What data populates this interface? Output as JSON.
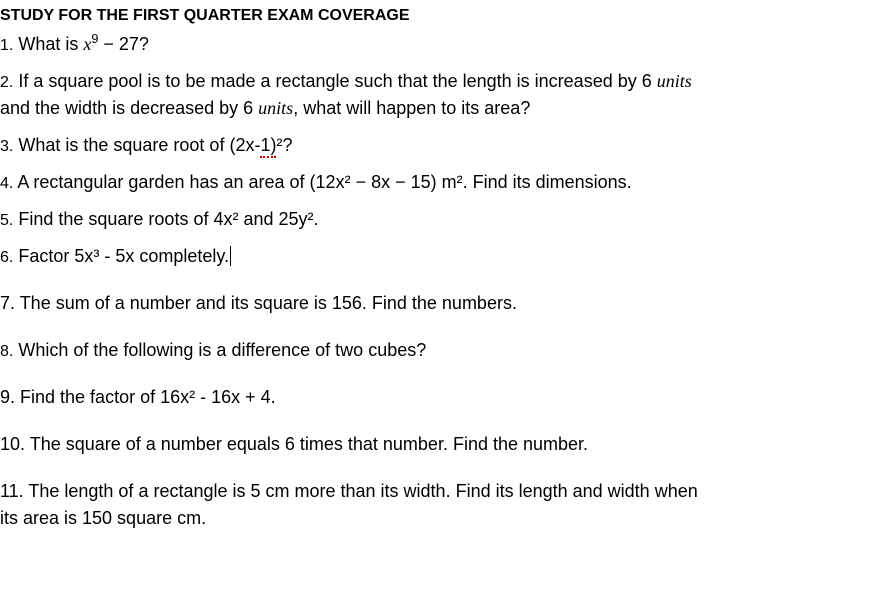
{
  "title": "STUDY FOR THE FIRST QUARTER EXAM COVERAGE",
  "questions": {
    "q1": {
      "num": "1.",
      "prefix": " What is ",
      "var": "x",
      "exp": "9",
      "mid": " − 27?"
    },
    "q2": {
      "num": "2.",
      "part1": " If a square pool is to be made a rectangle such that the length is increased by 6 ",
      "units1": "units",
      "part2": "and the width is decreased by 6 ",
      "units2": "units",
      "part3": ", what will happen to its area?"
    },
    "q3": {
      "num": "3.",
      "part1": " What is the square root of (2x-",
      "underlined": "1)",
      "part2": "²?"
    },
    "q4": {
      "num": "4.",
      "text": " A rectangular garden has an area of (12x² − 8x − 15) m². Find its dimensions."
    },
    "q5": {
      "num": "5.",
      "text": " Find the square roots of 4x² and 25y²."
    },
    "q6": {
      "num": "6.",
      "text": " Factor 5x³ - 5x completely."
    },
    "q7": {
      "num": "7.",
      "text": " The sum of a number and its square is 156. Find the numbers."
    },
    "q8": {
      "num": "8.",
      "text": " Which of the following is a difference of two cubes?"
    },
    "q9": {
      "num": "9.",
      "text": " Find the factor of 16x² - 16x + 4."
    },
    "q10": {
      "num": "10.",
      "text": " The square of a number equals 6 times that number. Find the number."
    },
    "q11": {
      "num": "11.",
      "part1": " The length of a rectangle is 5 cm more than its width. Find its length and width when",
      "part2": "its area is 150 square cm."
    }
  },
  "colors": {
    "text": "#000000",
    "background": "#ffffff",
    "underline": "#cc0000"
  },
  "fonts": {
    "body_size": 18,
    "title_size": 16,
    "num_size": 16
  }
}
